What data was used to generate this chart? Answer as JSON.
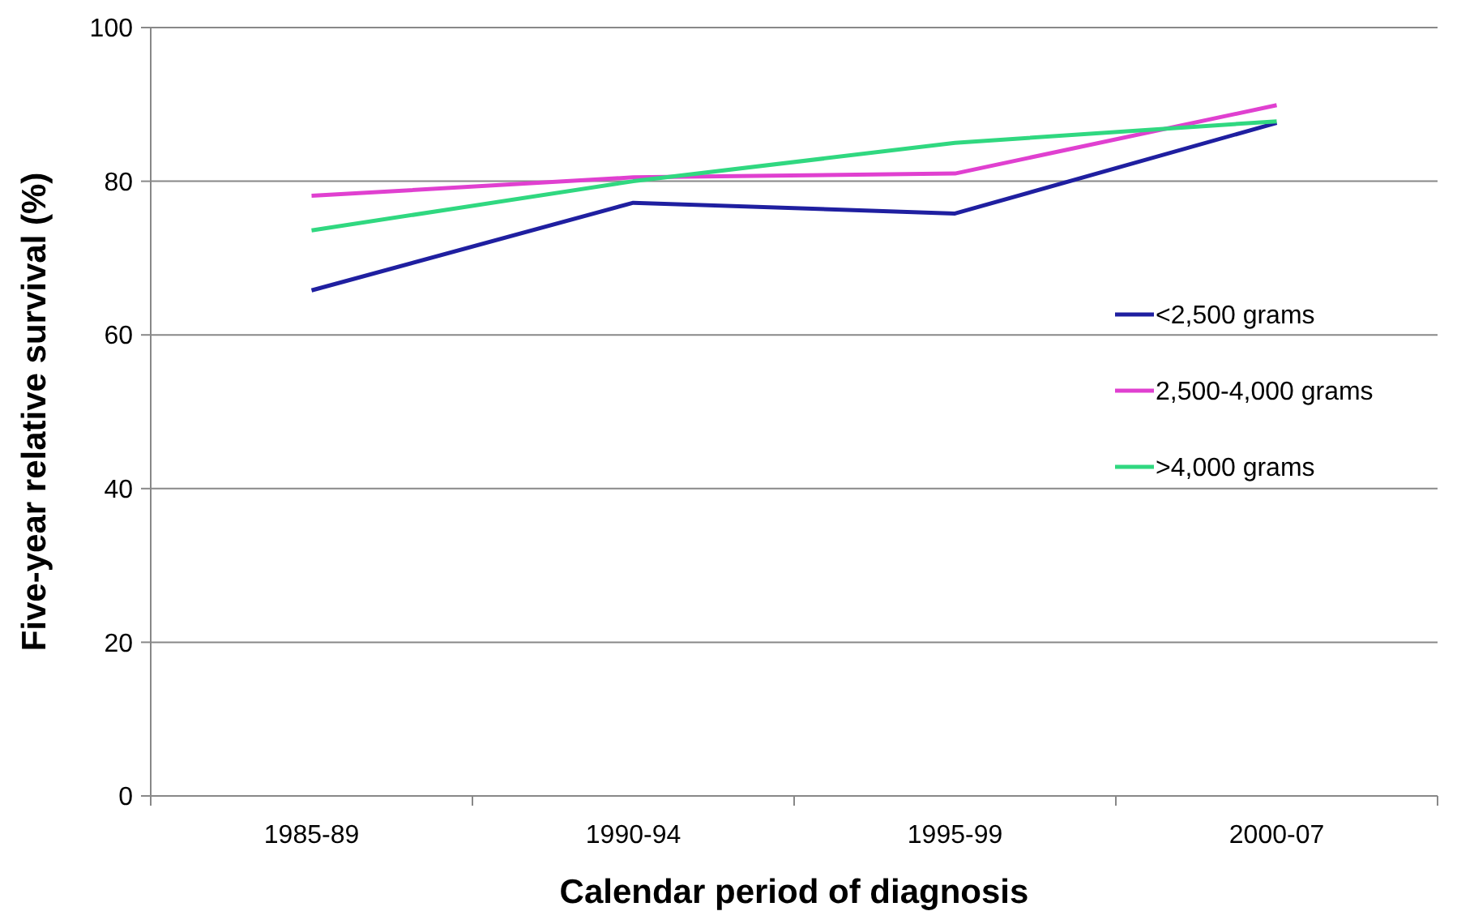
{
  "chart_data": {
    "type": "line",
    "xlabel": "Calendar period of diagnosis",
    "ylabel": "Five-year relative survival (%)",
    "categories": [
      "1985-89",
      "1990-94",
      "1995-99",
      "2000-07"
    ],
    "series": [
      {
        "name": "<2,500 grams",
        "color": "#1f1fa0",
        "values": [
          65.8,
          77.2,
          75.8,
          87.6
        ]
      },
      {
        "name": "2,500-4,000 grams",
        "color": "#e040d0",
        "values": [
          78.1,
          80.5,
          81.0,
          89.9
        ]
      },
      {
        "name": ">4,000 grams",
        "color": "#30d880",
        "values": [
          73.6,
          80.0,
          85.0,
          87.8
        ]
      }
    ],
    "ylim": [
      0,
      100
    ],
    "yticks": [
      0,
      20,
      40,
      60,
      80,
      100
    ],
    "grid": "y",
    "legend": "right",
    "marker": "none",
    "line_style": "solid"
  }
}
